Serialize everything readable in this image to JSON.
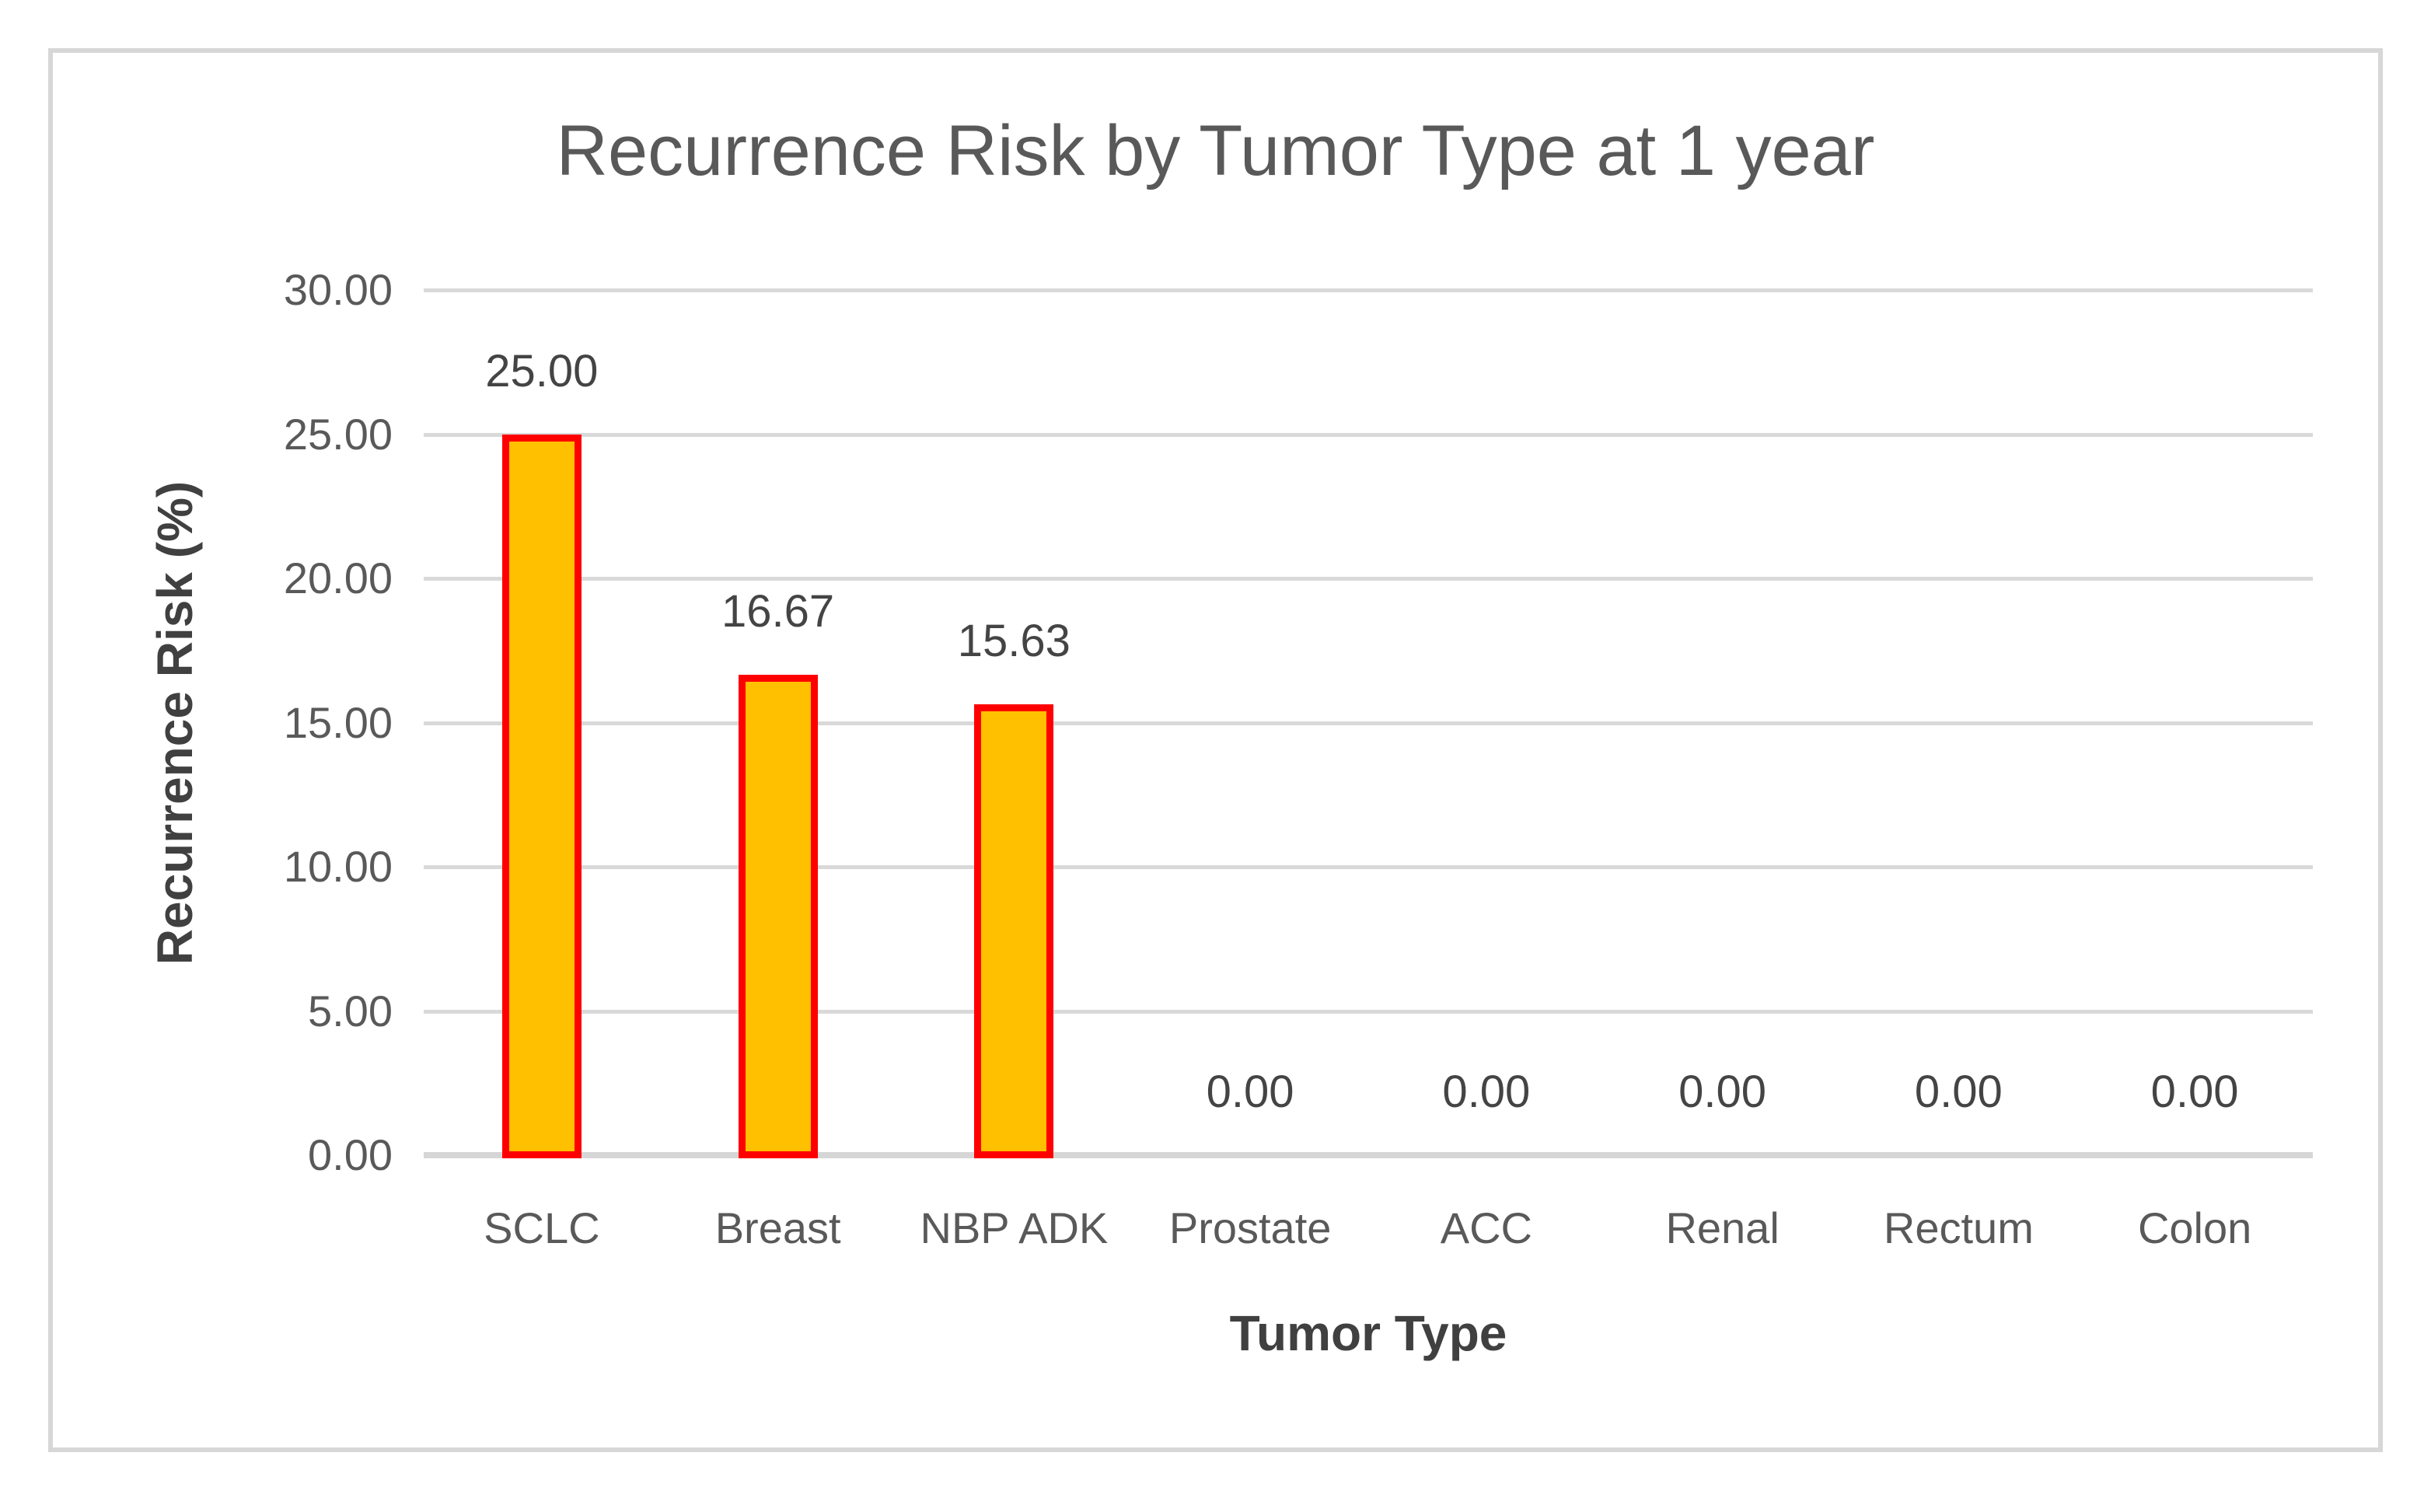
{
  "chart_data": {
    "type": "bar",
    "title": "Recurrence Risk by Tumor Type at 1 year",
    "xlabel": "Tumor Type",
    "ylabel": "Recurrence Risk (%)",
    "categories": [
      "SCLC",
      "Breast",
      "NBP ADK",
      "Prostate",
      "ACC",
      "Renal",
      "Rectum",
      "Colon"
    ],
    "values": [
      25.0,
      16.67,
      15.63,
      0.0,
      0.0,
      0.0,
      0.0,
      0.0
    ],
    "value_labels": [
      "25.00",
      "16.67",
      "15.63",
      "0.00",
      "0.00",
      "0.00",
      "0.00",
      "0.00"
    ],
    "ylim": [
      0,
      30
    ],
    "ytick_step": 5,
    "ytick_labels": [
      "0.00",
      "5.00",
      "10.00",
      "15.00",
      "20.00",
      "25.00",
      "30.00"
    ],
    "grid": "horizontal-only",
    "legend": "none",
    "bar_fill_color": "#FFC000",
    "bar_border_color": "#FF0000",
    "gridline_color": "#D9D9D9",
    "text_color": "#595959"
  }
}
